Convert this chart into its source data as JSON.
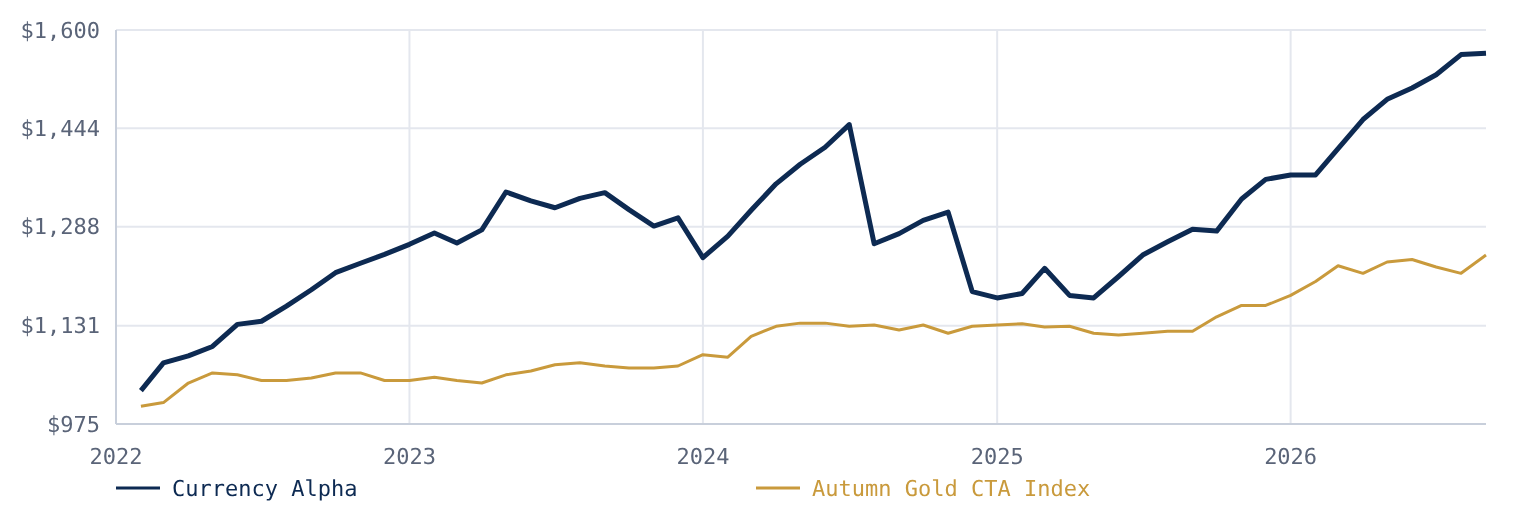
{
  "chart_data": {
    "type": "line",
    "x": [
      "2022-02",
      "2022-03",
      "2022-04",
      "2022-05",
      "2022-06",
      "2022-07",
      "2022-08",
      "2022-09",
      "2022-10",
      "2022-11",
      "2022-12",
      "2023-01",
      "2023-02",
      "2023-03",
      "2023-04",
      "2023-05",
      "2023-06",
      "2023-07",
      "2023-08",
      "2023-09",
      "2023-10",
      "2023-11",
      "2023-12",
      "2024-01",
      "2024-02",
      "2024-03",
      "2024-04",
      "2024-05",
      "2024-06",
      "2024-07",
      "2024-08",
      "2024-09",
      "2024-10",
      "2024-11",
      "2024-12",
      "2025-01",
      "2025-02",
      "2025-03",
      "2025-04",
      "2025-05",
      "2025-06",
      "2025-07",
      "2025-08",
      "2025-09",
      "2025-10",
      "2025-11",
      "2025-12",
      "2026-01",
      "2026-02",
      "2026-03",
      "2026-04",
      "2026-05",
      "2026-06",
      "2026-07",
      "2026-08",
      "2026-09"
    ],
    "series": [
      {
        "name": "Currency Alpha",
        "color": "#0d2a52",
        "values": [
          1028,
          1072,
          1083,
          1098,
          1133,
          1138,
          1162,
          1188,
          1215,
          1230,
          1244,
          1260,
          1278,
          1262,
          1283,
          1343,
          1329,
          1318,
          1333,
          1342,
          1315,
          1289,
          1302,
          1239,
          1273,
          1314,
          1356,
          1387,
          1414,
          1450,
          1261,
          1277,
          1298,
          1311,
          1185,
          1175,
          1182,
          1222,
          1179,
          1175,
          1209,
          1243,
          1264,
          1284,
          1281,
          1332,
          1363,
          1370,
          1370,
          1412,
          1458,
          1490,
          1508,
          1529,
          1561,
          1563
        ]
      },
      {
        "name": "Autumn Gold CTA Index",
        "color": "#c99a3c",
        "values": [
          1003,
          1009,
          1040,
          1056,
          1053,
          1044,
          1044,
          1048,
          1056,
          1056,
          1044,
          1044,
          1049,
          1044,
          1040,
          1053,
          1059,
          1069,
          1072,
          1067,
          1064,
          1064,
          1067,
          1085,
          1081,
          1114,
          1130,
          1135,
          1135,
          1130,
          1132,
          1124,
          1132,
          1119,
          1130,
          1132,
          1134,
          1129,
          1130,
          1119,
          1116,
          1119,
          1122,
          1122,
          1145,
          1163,
          1163,
          1179,
          1201,
          1226,
          1214,
          1232,
          1236,
          1224,
          1214,
          1243
        ]
      }
    ],
    "xlim": [
      "2022-01-01",
      "2026-09-01"
    ],
    "xticks": [
      {
        "value": "2022-01-01",
        "label": "2022"
      },
      {
        "value": "2023-01-01",
        "label": "2023"
      },
      {
        "value": "2024-01-01",
        "label": "2024"
      },
      {
        "value": "2025-01-01",
        "label": "2025"
      },
      {
        "value": "2026-01-01",
        "label": "2026"
      }
    ],
    "ylim": [
      975,
      1600
    ],
    "yticks": [
      {
        "value": 975,
        "label": "$975"
      },
      {
        "value": 1131,
        "label": "$1,131"
      },
      {
        "value": 1288,
        "label": "$1,288"
      },
      {
        "value": 1444,
        "label": "$1,444"
      },
      {
        "value": 1600,
        "label": "$1,600"
      }
    ],
    "grid": true,
    "legend": "bottom",
    "marker": "none",
    "line_style": "solid"
  }
}
